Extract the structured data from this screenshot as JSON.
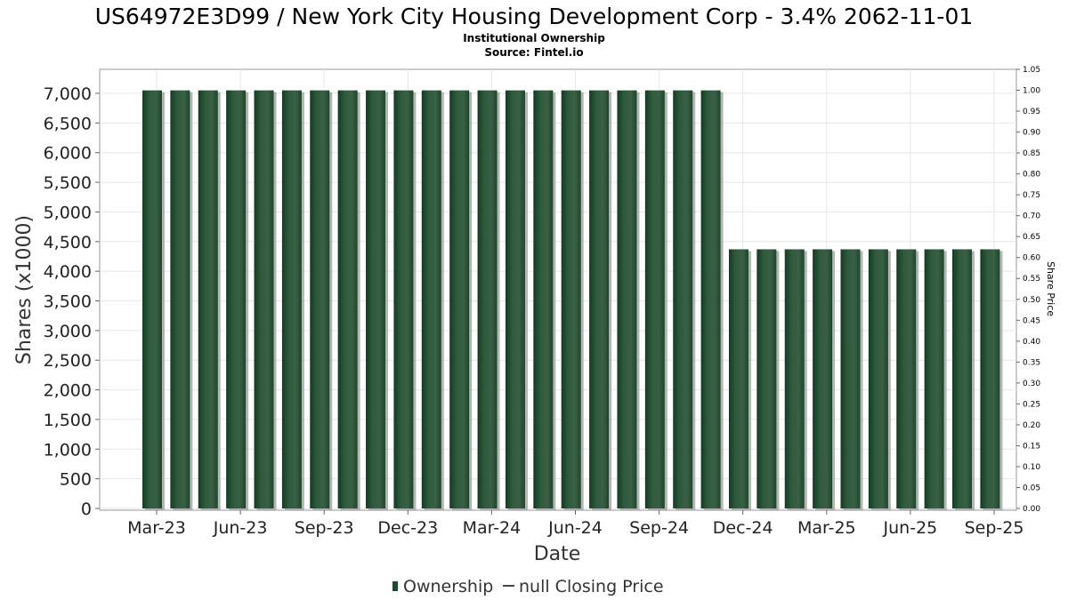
{
  "chart_data": {
    "type": "bar",
    "title": "US64972E3D99 / New York City Housing Development Corp - 3.4% 2062-11-01",
    "subtitle_lines": [
      "Institutional Ownership",
      "Source: Fintel.io"
    ],
    "xlabel": "Date",
    "ylabel": "Shares (x1000)",
    "y2label": "Share Price",
    "ylim": [
      0,
      7400
    ],
    "y_ticks": [
      0,
      500,
      1000,
      1500,
      2000,
      2500,
      3000,
      3500,
      4000,
      4500,
      5000,
      5500,
      6000,
      6500,
      7000
    ],
    "y2lim": [
      0,
      1.05
    ],
    "y2_ticks": [
      0.0,
      0.05,
      0.1,
      0.15,
      0.2,
      0.25,
      0.3,
      0.35,
      0.4,
      0.45,
      0.5,
      0.55,
      0.6,
      0.65,
      0.7,
      0.75,
      0.8,
      0.85,
      0.9,
      0.95,
      1.0,
      1.05
    ],
    "x_tick_labels": [
      "Mar-23",
      "Jun-23",
      "Sep-23",
      "Dec-23",
      "Mar-24",
      "Jun-24",
      "Sep-24",
      "Dec-24",
      "Mar-25",
      "Jun-25",
      "Sep-25"
    ],
    "series": [
      {
        "name": "Ownership",
        "color": "#1d4a2a",
        "values": [
          7050,
          7050,
          7050,
          7050,
          7050,
          7050,
          7050,
          7050,
          7050,
          7050,
          7050,
          7050,
          7050,
          7050,
          7050,
          7050,
          7050,
          7050,
          7050,
          7050,
          7050,
          4370,
          4370,
          4370,
          4370,
          4370,
          4370,
          4370,
          4370,
          4370,
          4370
        ]
      }
    ],
    "legend": {
      "placement": "bottom",
      "entries": [
        "Ownership",
        "null Closing Price"
      ]
    },
    "grid": true
  }
}
